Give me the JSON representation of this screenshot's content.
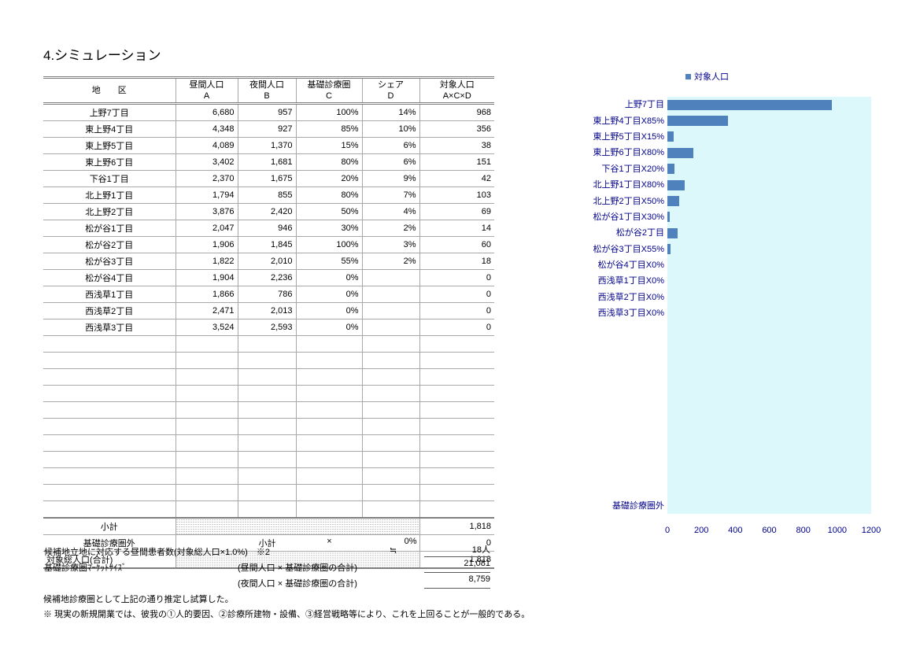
{
  "page": {
    "title": "4.シミュレーション"
  },
  "table": {
    "header": {
      "district": "地　　区",
      "day": [
        "昼間人口",
        "A"
      ],
      "night": [
        "夜間人口",
        "B"
      ],
      "coverage": [
        "基礎診療圏",
        "C"
      ],
      "share": [
        "シェア",
        "D"
      ],
      "target": [
        "対象人口",
        "A×C×D"
      ]
    },
    "rows": [
      {
        "district": "上野7丁目",
        "day": "6,680",
        "night": "957",
        "coverage": "100%",
        "share": "14%",
        "target": "968"
      },
      {
        "district": "東上野4丁目",
        "day": "4,348",
        "night": "927",
        "coverage": "85%",
        "share": "10%",
        "target": "356"
      },
      {
        "district": "東上野5丁目",
        "day": "4,089",
        "night": "1,370",
        "coverage": "15%",
        "share": "6%",
        "target": "38"
      },
      {
        "district": "東上野6丁目",
        "day": "3,402",
        "night": "1,681",
        "coverage": "80%",
        "share": "6%",
        "target": "151"
      },
      {
        "district": "下谷1丁目",
        "day": "2,370",
        "night": "1,675",
        "coverage": "20%",
        "share": "9%",
        "target": "42"
      },
      {
        "district": "北上野1丁目",
        "day": "1,794",
        "night": "855",
        "coverage": "80%",
        "share": "7%",
        "target": "103"
      },
      {
        "district": "北上野2丁目",
        "day": "3,876",
        "night": "2,420",
        "coverage": "50%",
        "share": "4%",
        "target": "69"
      },
      {
        "district": "松が谷1丁目",
        "day": "2,047",
        "night": "946",
        "coverage": "30%",
        "share": "2%",
        "target": "14"
      },
      {
        "district": "松が谷2丁目",
        "day": "1,906",
        "night": "1,845",
        "coverage": "100%",
        "share": "3%",
        "target": "60"
      },
      {
        "district": "松が谷3丁目",
        "day": "1,822",
        "night": "2,010",
        "coverage": "55%",
        "share": "2%",
        "target": "18"
      },
      {
        "district": "松が谷4丁目",
        "day": "1,904",
        "night": "2,236",
        "coverage": "0%",
        "share": "",
        "target": "0"
      },
      {
        "district": "西浅草1丁目",
        "day": "1,866",
        "night": "786",
        "coverage": "0%",
        "share": "",
        "target": "0"
      },
      {
        "district": "西浅草2丁目",
        "day": "2,471",
        "night": "2,013",
        "coverage": "0%",
        "share": "",
        "target": "0"
      },
      {
        "district": "西浅草3丁目",
        "day": "3,524",
        "night": "2,593",
        "coverage": "0%",
        "share": "",
        "target": "0"
      }
    ],
    "empty_row_count": 11,
    "subtotal": {
      "label": "小計",
      "value": "1,818"
    },
    "outside": {
      "label": "基礎診療圏外",
      "subtotal_label": "小計",
      "multiply": "×",
      "share": "0%",
      "value": "0"
    },
    "total": {
      "label": "対象総人口(合計)",
      "value": "1,818"
    }
  },
  "notes": {
    "patients": {
      "label": "候補地立地に対応する昼間患者数(対象総人口×1.0%)　※2",
      "approx": "≒",
      "value": "18人"
    },
    "market": {
      "label": "基礎診療圏ﾏｰｹｯﾄｻｲｽﾞ",
      "day_formula": "(昼間人口 × 基礎診療圏の合計)",
      "day_value": "21,081",
      "night_formula": "(夜間人口 × 基礎診療圏の合計)",
      "night_value": "8,759"
    },
    "footnote1": "候補地診療圏として上記の通り推定し試算した。",
    "footnote2": "※ 現実の新規開業では、彼我の①人的要因、②診療所建物・設備、③経営戦略等により、これを上回ることが一般的である。"
  },
  "chart_data": {
    "type": "bar",
    "orientation": "horizontal",
    "title": "",
    "legend": [
      "対象人口"
    ],
    "legend_position": "top",
    "categories": [
      "上野7丁目",
      "東上野4丁目X85%",
      "東上野5丁目X15%",
      "東上野6丁目X80%",
      "下谷1丁目X20%",
      "北上野1丁目X80%",
      "北上野2丁目X50%",
      "松が谷1丁目X30%",
      "松が谷2丁目",
      "松が谷3丁目X55%",
      "松が谷4丁目X0%",
      "西浅草1丁目X0%",
      "西浅草2丁目X0%",
      "西浅草3丁目X0%",
      "",
      "",
      "",
      "",
      "",
      "",
      "",
      "",
      "",
      "",
      "",
      "基礎診療圏外"
    ],
    "values": [
      968,
      356,
      38,
      151,
      42,
      103,
      69,
      14,
      60,
      18,
      0,
      0,
      0,
      0,
      null,
      null,
      null,
      null,
      null,
      null,
      null,
      null,
      null,
      null,
      null,
      0
    ],
    "xlim": [
      0,
      1200
    ],
    "xticks": [
      0,
      200,
      400,
      600,
      800,
      1000,
      1200
    ],
    "grid": false,
    "bar_color": "#4F81BD",
    "plot_bg_color": "#DCF8FB",
    "label_color": "#00008B"
  }
}
